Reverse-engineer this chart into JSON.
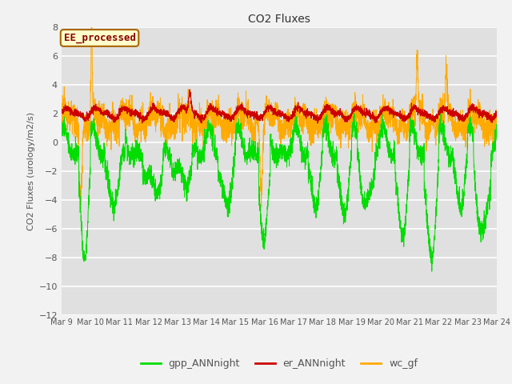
{
  "title": "CO2 Fluxes",
  "ylabel": "CO2 Fluxes (urology/m2/s)",
  "ylim": [
    -12,
    8
  ],
  "yticks": [
    -12,
    -10,
    -8,
    -6,
    -4,
    -2,
    0,
    2,
    4,
    6,
    8
  ],
  "xticklabels": [
    "Mar 9",
    "Mar 10",
    "Mar 11",
    "Mar 12",
    "Mar 13",
    "Mar 14",
    "Mar 15",
    "Mar 16",
    "Mar 17",
    "Mar 18",
    "Mar 19",
    "Mar 20",
    "Mar 21",
    "Mar 22",
    "Mar 23",
    "Mar 24"
  ],
  "colors": {
    "gpp": "#00dd00",
    "er": "#cc0000",
    "wc": "#ffaa00"
  },
  "legend_labels": [
    "gpp_ANNnight",
    "er_ANNnight",
    "wc_gf"
  ],
  "annotation_text": "EE_processed",
  "annotation_bg": "#ffffcc",
  "annotation_border": "#aa6600",
  "fig_bg": "#f2f2f2",
  "plot_bg": "#e0e0e0",
  "grid_color": "#ffffff",
  "n_points": 3600,
  "seed": 42
}
